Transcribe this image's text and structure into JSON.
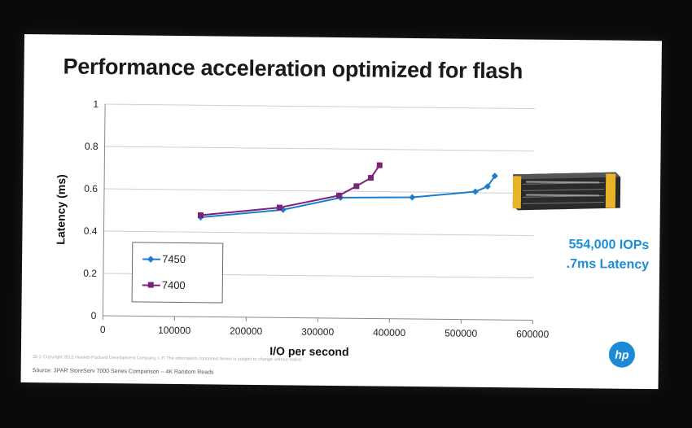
{
  "slide": {
    "title": "Performance acceleration optimized for flash",
    "callout": [
      "554,000 IOPs",
      ".7ms Latency"
    ],
    "copyright": "30  © Copyright 2013 Hewlett-Packard Development Company, L.P.  The information contained herein is subject to change without notice.",
    "source": "Source:  3PAR StoreServ 7000 Series Comparison – 4K Random Reads",
    "logo_text": "hp"
  },
  "chart_data": {
    "type": "line",
    "title": "",
    "xlabel": "I/O per second",
    "ylabel": "Latency (ms)",
    "xlim": [
      0,
      600000
    ],
    "ylim": [
      0,
      1
    ],
    "xticks": [
      0,
      100000,
      200000,
      300000,
      400000,
      500000,
      600000
    ],
    "xtick_labels": [
      "0",
      "100000",
      "200000",
      "300000",
      "400000",
      "500000",
      "600000"
    ],
    "yticks": [
      0,
      0.2,
      0.4,
      0.6,
      0.8,
      1
    ],
    "ytick_labels": [
      "0",
      "0.2",
      "0.4",
      "0.6",
      "0.8",
      "1"
    ],
    "grid": "horizontal",
    "legend": "bottom-left",
    "series": [
      {
        "name": "7450",
        "color": "#1b7fd1",
        "marker": "diamond",
        "points": [
          [
            135000,
            0.47
          ],
          [
            250000,
            0.51
          ],
          [
            330000,
            0.57
          ],
          [
            430000,
            0.575
          ],
          [
            518000,
            0.605
          ],
          [
            535000,
            0.63
          ],
          [
            545000,
            0.68
          ]
        ]
      },
      {
        "name": "7400",
        "color": "#7a2479",
        "marker": "square",
        "points": [
          [
            135000,
            0.48
          ],
          [
            245000,
            0.52
          ],
          [
            328000,
            0.58
          ],
          [
            352000,
            0.625
          ],
          [
            372000,
            0.665
          ],
          [
            384000,
            0.725
          ]
        ]
      }
    ]
  }
}
